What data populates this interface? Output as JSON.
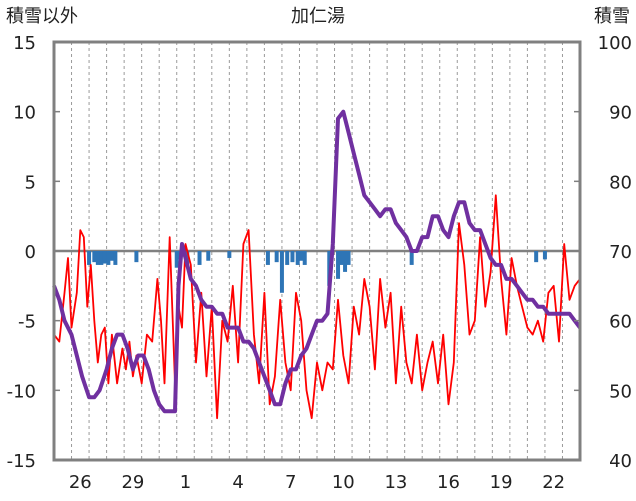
{
  "chart_data": {
    "type": "line",
    "title": "加仁湯",
    "left_axis_label": "積雪以外",
    "right_axis_label": "積雪",
    "left_ylim": [
      -15,
      15
    ],
    "left_yticks": [
      "15",
      "10",
      "5",
      "0",
      "-5",
      "-10",
      "-15"
    ],
    "right_ylim": [
      40,
      100
    ],
    "right_yticks": [
      "100",
      "90",
      "80",
      "70",
      "60",
      "50",
      "40"
    ],
    "x_tick_labels": [
      "26",
      "29",
      "1",
      "4",
      "7",
      "10",
      "13",
      "16",
      "19",
      "22"
    ],
    "x_tick_positions": [
      1.5,
      4.5,
      7.5,
      10.5,
      13.5,
      16.5,
      19.5,
      22.5,
      25.5,
      28.5
    ],
    "x_range": [
      0,
      30
    ],
    "grid": "vertical dashed",
    "colors": {
      "temperature": "#ff0000",
      "snow_depth": "#7030a0",
      "precipitation": "#2e75b6",
      "frame": "#808080",
      "zero_line": "#808080"
    },
    "series": [
      {
        "key": "temperature",
        "axis": "left",
        "x": [
          0,
          0.3,
          0.6,
          0.8,
          1.0,
          1.3,
          1.5,
          1.7,
          1.9,
          2.1,
          2.3,
          2.5,
          2.7,
          2.9,
          3.1,
          3.3,
          3.6,
          3.9,
          4.1,
          4.3,
          4.5,
          4.7,
          5.0,
          5.3,
          5.6,
          5.9,
          6.1,
          6.3,
          6.6,
          6.9,
          7.1,
          7.3,
          7.5,
          7.8,
          8.1,
          8.4,
          8.7,
          9.0,
          9.3,
          9.6,
          9.9,
          10.2,
          10.5,
          10.8,
          11.1,
          11.4,
          11.7,
          12.0,
          12.3,
          12.6,
          12.9,
          13.2,
          13.5,
          13.8,
          14.1,
          14.4,
          14.7,
          15.0,
          15.3,
          15.6,
          15.9,
          16.2,
          16.5,
          16.8,
          17.1,
          17.4,
          17.7,
          18.0,
          18.3,
          18.6,
          18.9,
          19.2,
          19.5,
          19.8,
          20.1,
          20.4,
          20.7,
          21.0,
          21.3,
          21.6,
          21.9,
          22.2,
          22.5,
          22.8,
          23.1,
          23.4,
          23.7,
          24.0,
          24.3,
          24.6,
          24.9,
          25.2,
          25.5,
          25.8,
          26.1,
          26.4,
          26.7,
          27.0,
          27.3,
          27.6,
          27.9,
          28.2,
          28.5,
          28.8,
          29.1,
          29.4,
          29.7,
          30.0
        ],
        "values": [
          -6,
          -6.5,
          -3,
          -0.5,
          -5.5,
          -3,
          1.5,
          1.0,
          -4,
          -1,
          -5,
          -8,
          -6,
          -5.5,
          -9.5,
          -6,
          -9.5,
          -7,
          -8.5,
          -6.5,
          -9,
          -7.5,
          -9.5,
          -6,
          -6.5,
          -2,
          -5,
          -9.5,
          1.0,
          -9.5,
          -4,
          -5.5,
          0.5,
          -1,
          -8,
          -3,
          -9,
          -4,
          -12,
          -5,
          -6.5,
          -2.5,
          -8,
          0.5,
          1.5,
          -6,
          -9.5,
          -3,
          -11,
          -9,
          -3.5,
          -8,
          -10,
          -3,
          -5,
          -10,
          -12,
          -8,
          -10,
          -8,
          -8.5,
          -3.5,
          -7.5,
          -9.5,
          -4,
          -6,
          -2,
          -4,
          -8.5,
          -2,
          -5.5,
          -3,
          -9.5,
          -4,
          -8,
          -9.5,
          -6,
          -10,
          -8,
          -6.5,
          -9.5,
          -6,
          -11,
          -8,
          2.0,
          -1,
          -6,
          -5,
          1.0,
          -4,
          -1.5,
          4.0,
          -2,
          -6,
          -0.5,
          -2.5,
          -4,
          -5.5,
          -6,
          -5,
          -6.5,
          -3,
          -2.5,
          -6.5,
          0.5,
          -3.5,
          -2.5,
          -2
        ]
      },
      {
        "key": "snow_depth",
        "axis": "right",
        "x": [
          0,
          0.3,
          0.6,
          1.0,
          1.3,
          1.6,
          2.0,
          2.3,
          2.6,
          3.0,
          3.3,
          3.6,
          3.9,
          4.2,
          4.5,
          4.8,
          5.1,
          5.4,
          5.7,
          6.0,
          6.3,
          6.6,
          6.9,
          7.1,
          7.3,
          7.5,
          7.8,
          8.1,
          8.4,
          8.7,
          9.0,
          9.3,
          9.6,
          9.9,
          10.2,
          10.5,
          10.8,
          11.1,
          11.4,
          11.7,
          12.0,
          12.3,
          12.6,
          12.9,
          13.2,
          13.5,
          13.8,
          14.1,
          14.4,
          14.7,
          15.0,
          15.3,
          15.6,
          15.9,
          16.2,
          16.5,
          16.8,
          17.1,
          17.4,
          17.7,
          18.0,
          18.3,
          18.6,
          18.9,
          19.2,
          19.5,
          19.8,
          20.1,
          20.4,
          20.7,
          21.0,
          21.3,
          21.6,
          21.9,
          22.2,
          22.5,
          22.8,
          23.1,
          23.4,
          23.7,
          24.0,
          24.3,
          24.6,
          24.9,
          25.2,
          25.5,
          25.8,
          26.1,
          26.4,
          26.7,
          27.0,
          27.3,
          27.6,
          27.9,
          28.2,
          28.5,
          28.8,
          29.1,
          29.4,
          29.7,
          30.0
        ],
        "values": [
          65,
          63,
          60,
          58,
          55,
          52,
          49,
          49,
          50,
          53,
          56,
          58,
          58,
          56,
          53,
          55,
          55,
          53,
          50,
          48,
          47,
          47,
          47,
          65,
          71,
          69,
          66,
          65,
          63,
          62,
          62,
          61,
          61,
          59,
          59,
          59,
          57,
          57,
          56,
          54,
          52,
          50,
          48,
          48,
          51,
          53,
          53,
          55,
          56,
          58,
          60,
          60,
          61,
          71,
          89,
          90,
          87,
          84,
          81,
          78,
          77,
          76,
          75,
          76,
          76,
          74,
          73,
          72,
          70,
          70,
          72,
          72,
          75,
          75,
          73,
          72,
          75,
          77,
          77,
          74,
          73,
          73,
          71,
          69,
          68,
          68,
          66,
          66,
          65,
          64,
          63,
          63,
          62,
          62,
          61,
          61,
          61,
          61,
          61,
          60,
          59
        ]
      },
      {
        "key": "precipitation",
        "axis": "left",
        "type": "bar",
        "x": [
          2.0,
          2.3,
          2.5,
          2.7,
          2.9,
          3.1,
          3.3,
          3.5,
          4.7,
          7.0,
          7.2,
          7.6,
          8.3,
          8.8,
          10.0,
          12.2,
          12.7,
          13.0,
          13.3,
          13.6,
          13.9,
          14.1,
          14.3,
          15.7,
          16.2,
          16.4,
          16.6,
          16.8,
          20.4,
          27.5,
          28.0
        ],
        "values": [
          -1,
          -0.8,
          -1,
          -1,
          -0.9,
          -1,
          -0.7,
          -1,
          -0.8,
          -1.2,
          -0.6,
          -0.9,
          -1,
          -0.7,
          -0.5,
          -1,
          -0.8,
          -3,
          -1,
          -0.8,
          -1,
          -0.7,
          -1,
          -2.5,
          -2,
          -1,
          -1.5,
          -1,
          -1,
          -0.8,
          -0.6
        ]
      }
    ]
  }
}
